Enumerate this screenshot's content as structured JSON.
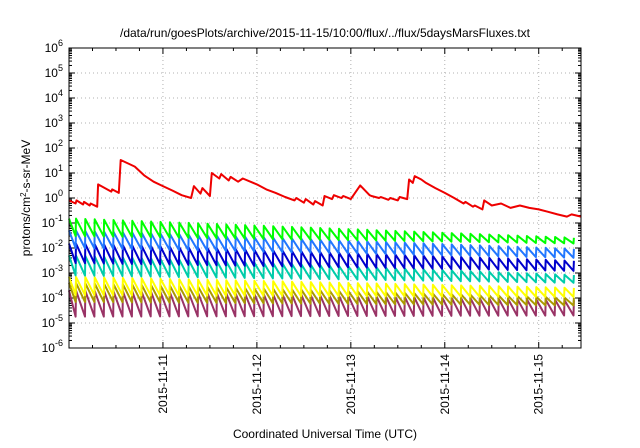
{
  "chart_data": {
    "type": "line",
    "title": "/data/run/goesPlots/archive/2015-11-15/10:00/flux/../flux/5daysMarsFluxes.txt",
    "xlabel": "Coordinated Universal Time (UTC)",
    "ylabel": "protons/cm²-s-sr-MeV",
    "x_ticks": [
      "2015-11-11",
      "2015-11-12",
      "2015-11-13",
      "2015-11-14",
      "2015-11-15"
    ],
    "y_ticks": [
      "10-6",
      "10-5",
      "10-4",
      "10-3",
      "10-2",
      "10-1",
      "100",
      "101",
      "102",
      "103",
      "104",
      "105",
      "106"
    ],
    "y_scale": "log",
    "ylim": [
      1e-06,
      1000000.0
    ],
    "xlim_days_from_2015_11_10": [
      0.0,
      5.45
    ],
    "grid": true,
    "series": [
      {
        "color": "#ee0000",
        "x": [
          0.0,
          0.07,
          0.08,
          0.15,
          0.16,
          0.22,
          0.23,
          0.3,
          0.31,
          0.45,
          0.46,
          0.53,
          0.55,
          0.7,
          0.8,
          0.9,
          1.0,
          1.1,
          1.2,
          1.3,
          1.33,
          1.4,
          1.42,
          1.5,
          1.52,
          1.6,
          1.62,
          1.7,
          1.72,
          1.8,
          1.85,
          2.0,
          2.1,
          2.2,
          2.3,
          2.4,
          2.42,
          2.5,
          2.52,
          2.6,
          2.62,
          2.7,
          2.72,
          2.8,
          2.82,
          2.9,
          2.92,
          3.0,
          3.1,
          3.2,
          3.22,
          3.3,
          3.32,
          3.4,
          3.42,
          3.5,
          3.52,
          3.6,
          3.62,
          3.66,
          3.68,
          3.75,
          3.8,
          3.9,
          4.0,
          4.1,
          4.2,
          4.22,
          4.3,
          4.32,
          4.4,
          4.42,
          4.5,
          4.6,
          4.7,
          4.8,
          4.9,
          5.0,
          5.1,
          5.2,
          5.3,
          5.35,
          5.45
        ],
        "values": [
          0.8,
          0.6,
          0.8,
          0.55,
          0.7,
          0.5,
          0.6,
          0.45,
          3.5,
          1.8,
          2.2,
          1.6,
          33,
          18,
          8,
          4.5,
          3,
          2,
          1.3,
          1,
          3,
          1.5,
          2.5,
          1.2,
          10,
          6,
          9,
          5,
          7,
          4.5,
          6,
          3.5,
          2.2,
          1.6,
          1.1,
          0.8,
          1,
          0.65,
          0.9,
          0.55,
          0.75,
          0.5,
          1.2,
          0.9,
          1.3,
          1,
          1.2,
          0.9,
          3.2,
          1.3,
          1.2,
          1,
          1.1,
          0.85,
          1,
          0.8,
          1.1,
          0.9,
          5.5,
          4,
          7.5,
          5.5,
          4,
          2.5,
          1.6,
          1,
          0.6,
          0.7,
          0.45,
          0.5,
          0.35,
          0.8,
          0.5,
          0.6,
          0.4,
          0.5,
          0.4,
          0.35,
          0.28,
          0.22,
          0.18,
          0.22,
          0.18
        ]
      },
      {
        "color": "#00ff00",
        "peak": 0.15,
        "trough": 0.03,
        "end_peak": 0.025,
        "end_trough": 0.015
      },
      {
        "color": "#2277ff",
        "peak": 0.05,
        "trough": 0.01,
        "end_peak": 0.009,
        "end_trough": 0.004
      },
      {
        "color": "#0000cc",
        "peak": 0.015,
        "trough": 0.0025,
        "end_peak": 0.003,
        "end_trough": 0.0012
      },
      {
        "color": "#00ccaa",
        "peak": 0.005,
        "trough": 0.0008,
        "end_peak": 0.0008,
        "end_trough": 0.0004
      },
      {
        "color": "#ffff00",
        "peak": 0.0007,
        "trough": 0.00013,
        "end_peak": 0.00025,
        "end_trough": 0.00011
      },
      {
        "color": "#aa9900",
        "peak": 0.0004,
        "trough": 7e-05,
        "end_peak": 0.0001,
        "end_trough": 5e-05
      },
      {
        "color": "#993366",
        "peak": 0.0002,
        "trough": 1.8e-05,
        "end_peak": 8e-05,
        "end_trough": 2e-05
      }
    ],
    "sawtooth_period_days": 0.1,
    "sawtooth_start_days": 0.07,
    "sawtooth_end_days": 5.45
  }
}
